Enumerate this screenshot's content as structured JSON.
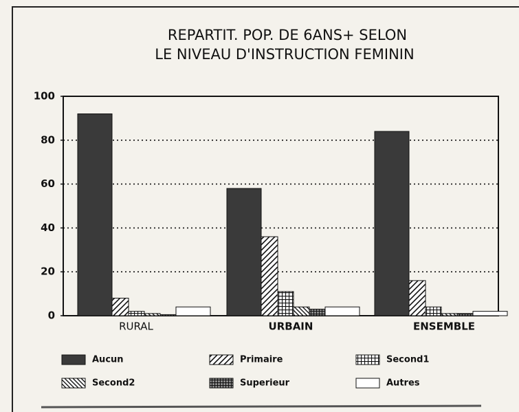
{
  "chart_data": {
    "type": "bar",
    "title": "REPARTIT. POP. DE 6ANS+ SELON",
    "subtitle": "LE NIVEAU D'INSTRUCTION FEMININ",
    "categories": [
      "RURAL",
      "URBAIN",
      "ENSEMBLE"
    ],
    "series": [
      {
        "name": "Aucun",
        "color": "#3a3a3a",
        "values": [
          92,
          58,
          84
        ]
      },
      {
        "name": "Primaire",
        "color": "#111111",
        "values": [
          8,
          36,
          16
        ]
      },
      {
        "name": "Second1",
        "color": "#111111",
        "values": [
          2,
          11,
          4
        ]
      },
      {
        "name": "Second2",
        "color": "#111111",
        "values": [
          1,
          4,
          1
        ]
      },
      {
        "name": "Superieur",
        "color": "#111111",
        "values": [
          0.5,
          3,
          1
        ]
      },
      {
        "name": "Autres",
        "color": "#ffffff",
        "values": [
          4,
          4,
          2
        ]
      }
    ],
    "ylim": [
      0,
      100
    ],
    "yticks": [
      0,
      20,
      40,
      60,
      80,
      100
    ],
    "grid": true
  }
}
